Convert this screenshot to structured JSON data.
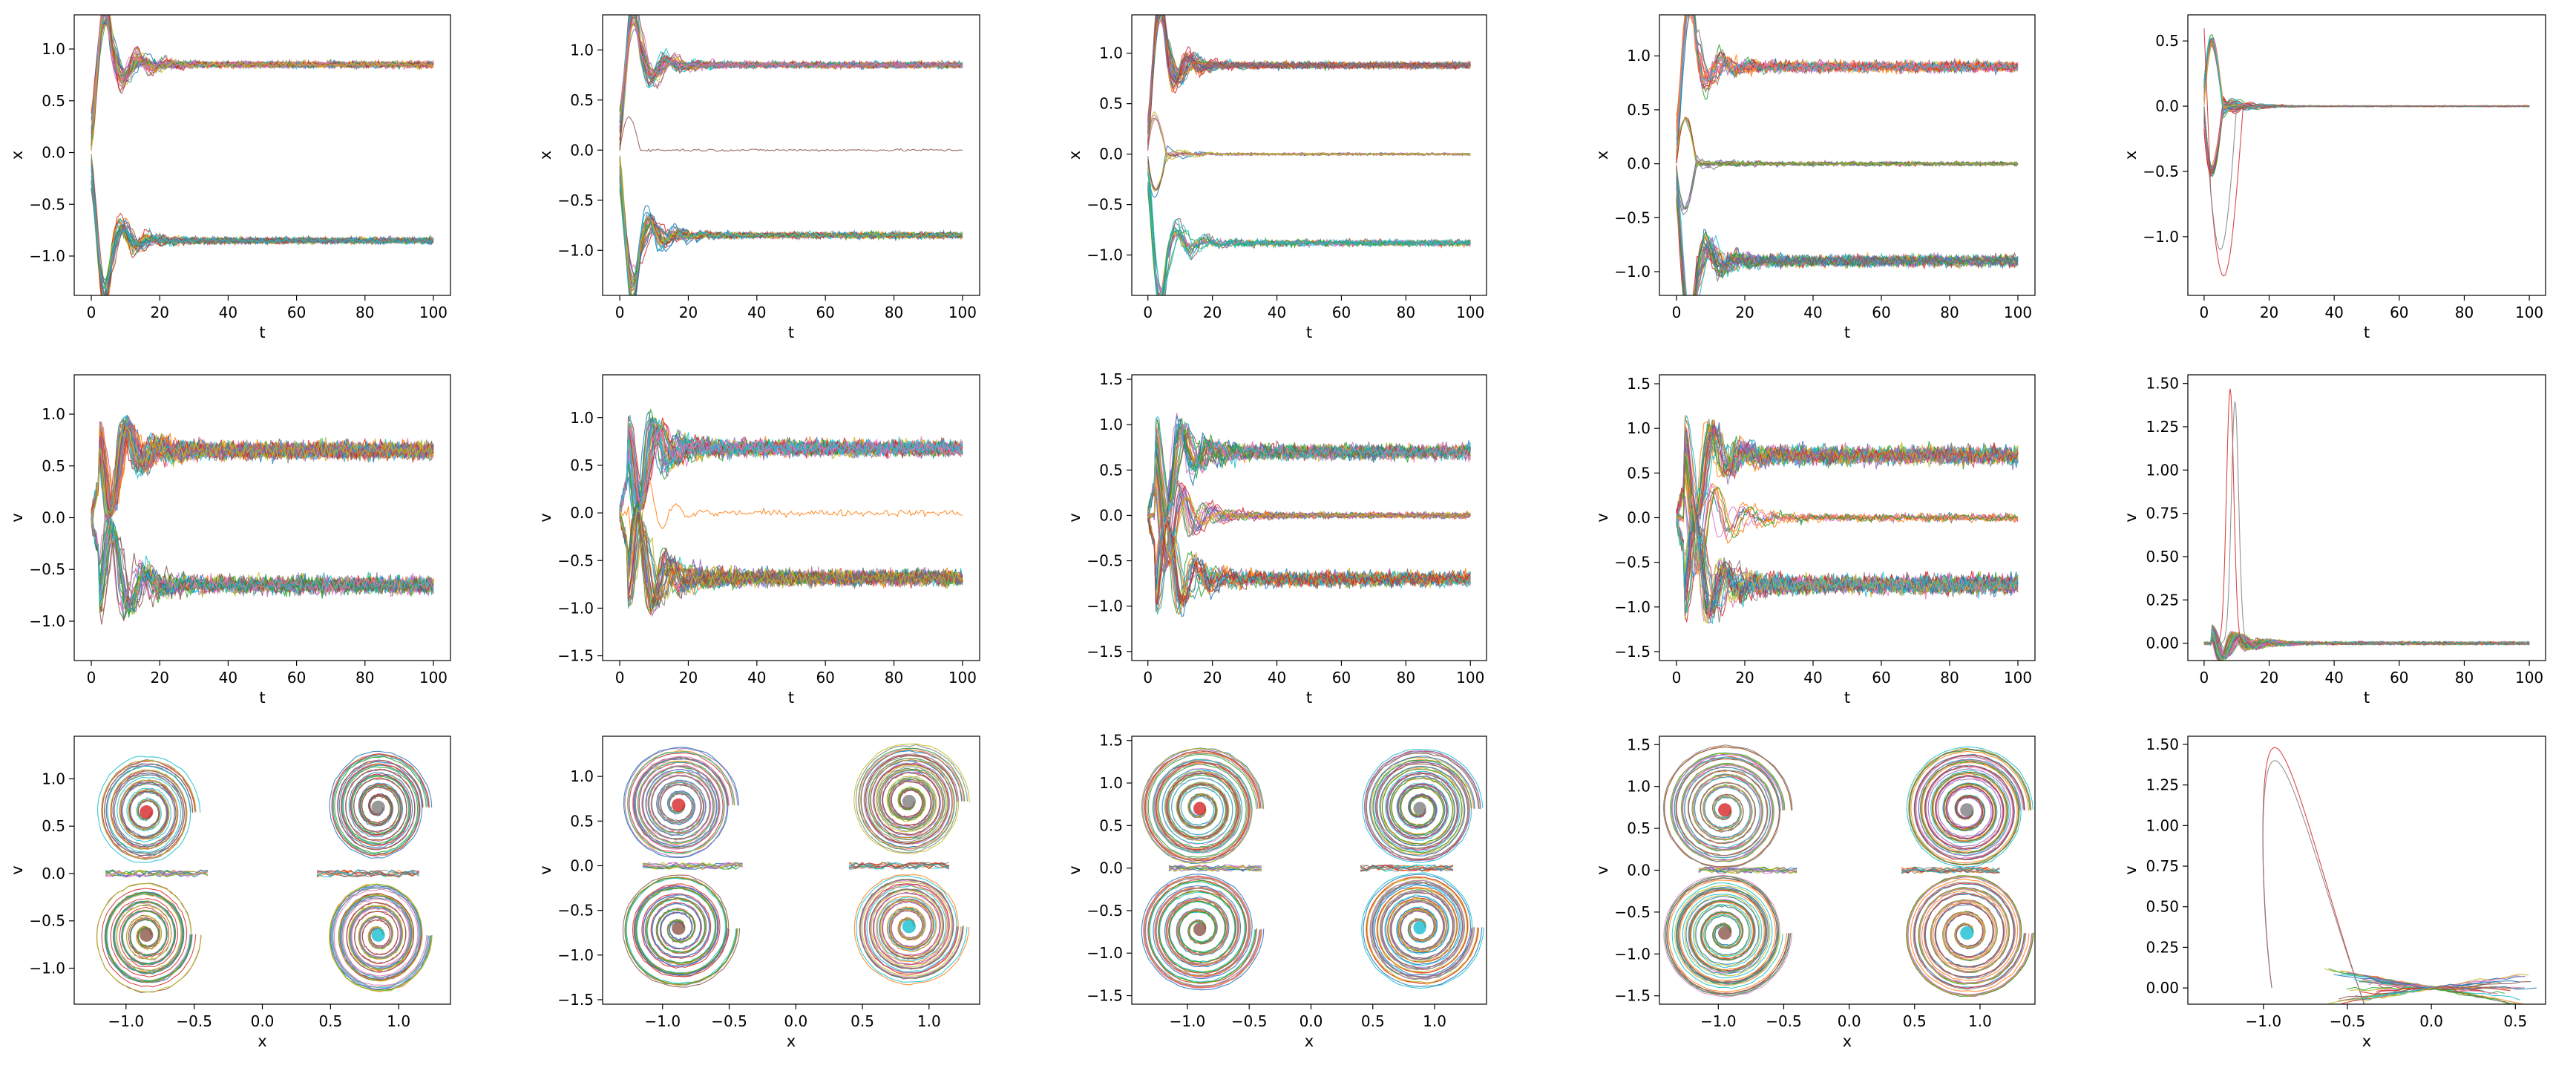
{
  "figure": {
    "description_layout": "3 rows x 5 columns grid of matplotlib subplots",
    "colors": [
      "#1f77b4",
      "#ff7f0e",
      "#2ca02c",
      "#d62728",
      "#9467bd",
      "#8c564b",
      "#e377c2",
      "#7f7f7f",
      "#bcbd22",
      "#17becf"
    ]
  },
  "chart_data": [
    {
      "id": "p00",
      "type": "line",
      "xlabel": "t",
      "ylabel": "x",
      "xlim": [
        -5,
        105
      ],
      "ylim": [
        -1.38,
        1.33
      ],
      "xticks": [
        0,
        20,
        40,
        60,
        80,
        100
      ],
      "yticks": [
        -1.0,
        -0.5,
        0.0,
        0.5,
        1.0
      ],
      "xticklabels": [
        "0",
        "20",
        "40",
        "60",
        "80",
        "100"
      ],
      "yticklabels": [
        "−1.0",
        "−0.5",
        "0.0",
        "0.5",
        "1.0"
      ],
      "series_summary": {
        "kind": "time",
        "levels": [
          0.85,
          -0.85
        ],
        "level_weights": [
          1,
          1
        ],
        "amplitude": 0.35,
        "noise": 0.03,
        "n_lines": 60
      }
    },
    {
      "id": "p01",
      "type": "line",
      "xlabel": "t",
      "ylabel": "x",
      "xlim": [
        -5,
        105
      ],
      "ylim": [
        -1.45,
        1.35
      ],
      "xticks": [
        0,
        20,
        40,
        60,
        80,
        100
      ],
      "yticks": [
        -1.0,
        -0.5,
        0.0,
        0.5,
        1.0
      ],
      "xticklabels": [
        "0",
        "20",
        "40",
        "60",
        "80",
        "100"
      ],
      "yticklabels": [
        "−1.0",
        "−0.5",
        "0.0",
        "0.5",
        "1.0"
      ],
      "series_summary": {
        "kind": "time",
        "levels": [
          0.85,
          0.0,
          -0.85
        ],
        "level_weights": [
          1,
          0.03,
          1
        ],
        "amplitude": 0.4,
        "noise": 0.03,
        "n_lines": 60
      }
    },
    {
      "id": "p02",
      "type": "line",
      "xlabel": "t",
      "ylabel": "x",
      "xlim": [
        -5,
        105
      ],
      "ylim": [
        -1.4,
        1.38
      ],
      "xticks": [
        0,
        20,
        40,
        60,
        80,
        100
      ],
      "yticks": [
        -1.0,
        -0.5,
        0.0,
        0.5,
        1.0
      ],
      "xticklabels": [
        "0",
        "20",
        "40",
        "60",
        "80",
        "100"
      ],
      "yticklabels": [
        "−1.0",
        "−0.5",
        "0.0",
        "0.5",
        "1.0"
      ],
      "series_summary": {
        "kind": "time",
        "levels": [
          0.88,
          0.0,
          -0.88
        ],
        "level_weights": [
          1,
          0.5,
          1
        ],
        "amplitude": 0.45,
        "noise": 0.03,
        "n_lines": 60
      }
    },
    {
      "id": "p03",
      "type": "line",
      "xlabel": "t",
      "ylabel": "x",
      "xlim": [
        -5,
        105
      ],
      "ylim": [
        -1.22,
        1.38
      ],
      "xticks": [
        0,
        20,
        40,
        60,
        80,
        100
      ],
      "yticks": [
        -1.0,
        -0.5,
        0.0,
        0.5,
        1.0
      ],
      "xticklabels": [
        "0",
        "20",
        "40",
        "60",
        "80",
        "100"
      ],
      "yticklabels": [
        "−1.0",
        "−0.5",
        "0.0",
        "0.5",
        "1.0"
      ],
      "series_summary": {
        "kind": "time",
        "levels": [
          0.9,
          0.0,
          -0.9
        ],
        "level_weights": [
          1,
          0.6,
          1
        ],
        "amplitude": 0.5,
        "noise": 0.05,
        "n_lines": 60
      }
    },
    {
      "id": "p04",
      "type": "line",
      "xlabel": "t",
      "ylabel": "x",
      "xlim": [
        -5,
        105
      ],
      "ylim": [
        -1.45,
        0.7
      ],
      "xticks": [
        0,
        20,
        40,
        60,
        80,
        100
      ],
      "yticks": [
        -1.0,
        -0.5,
        0.0,
        0.5
      ],
      "xticklabels": [
        "0",
        "20",
        "40",
        "60",
        "80",
        "100"
      ],
      "yticklabels": [
        "−1.0",
        "−0.5",
        "0.0",
        "0.5"
      ],
      "series_summary": {
        "kind": "time",
        "levels": [
          0.0
        ],
        "level_weights": [
          1
        ],
        "amplitude": 0.6,
        "noise": 0.01,
        "n_lines": 50,
        "outlier_min": -1.3
      }
    },
    {
      "id": "p10",
      "type": "line",
      "xlabel": "t",
      "ylabel": "v",
      "xlim": [
        -5,
        105
      ],
      "ylim": [
        -1.38,
        1.38
      ],
      "xticks": [
        0,
        20,
        40,
        60,
        80,
        100
      ],
      "yticks": [
        -1.0,
        -0.5,
        0.0,
        0.5,
        1.0
      ],
      "xticklabels": [
        "0",
        "20",
        "40",
        "60",
        "80",
        "100"
      ],
      "yticklabels": [
        "−1.0",
        "−0.5",
        "0.0",
        "0.5",
        "1.0"
      ],
      "series_summary": {
        "kind": "time",
        "levels": [
          0.65,
          -0.65
        ],
        "level_weights": [
          1,
          1
        ],
        "amplitude": 0.55,
        "noise": 0.08,
        "n_lines": 60
      }
    },
    {
      "id": "p11",
      "type": "line",
      "xlabel": "t",
      "ylabel": "v",
      "xlim": [
        -5,
        105
      ],
      "ylim": [
        -1.55,
        1.45
      ],
      "xticks": [
        0,
        20,
        40,
        60,
        80,
        100
      ],
      "yticks": [
        -1.5,
        -1.0,
        -0.5,
        0.0,
        0.5,
        1.0
      ],
      "xticklabels": [
        "0",
        "20",
        "40",
        "60",
        "80",
        "100"
      ],
      "yticklabels": [
        "−1.5",
        "−1.0",
        "−0.5",
        "0.0",
        "0.5",
        "1.0"
      ],
      "series_summary": {
        "kind": "time",
        "levels": [
          0.68,
          0.0,
          -0.68
        ],
        "level_weights": [
          1,
          0.03,
          1
        ],
        "amplitude": 0.6,
        "noise": 0.08,
        "n_lines": 60
      }
    },
    {
      "id": "p12",
      "type": "line",
      "xlabel": "t",
      "ylabel": "v",
      "xlim": [
        -5,
        105
      ],
      "ylim": [
        -1.6,
        1.55
      ],
      "xticks": [
        0,
        20,
        40,
        60,
        80,
        100
      ],
      "yticks": [
        -1.5,
        -1.0,
        -0.5,
        0.0,
        0.5,
        1.0,
        1.5
      ],
      "xticklabels": [
        "0",
        "20",
        "40",
        "60",
        "80",
        "100"
      ],
      "yticklabels": [
        "−1.5",
        "−1.0",
        "−0.5",
        "0.0",
        "0.5",
        "1.0",
        "1.5"
      ],
      "series_summary": {
        "kind": "time",
        "levels": [
          0.7,
          0.0,
          -0.7
        ],
        "level_weights": [
          1,
          0.5,
          1
        ],
        "amplitude": 0.65,
        "noise": 0.08,
        "n_lines": 60
      }
    },
    {
      "id": "p13",
      "type": "line",
      "xlabel": "t",
      "ylabel": "v",
      "xlim": [
        -5,
        105
      ],
      "ylim": [
        -1.6,
        1.6
      ],
      "xticks": [
        0,
        20,
        40,
        60,
        80,
        100
      ],
      "yticks": [
        -1.5,
        -1.0,
        -0.5,
        0.0,
        0.5,
        1.0,
        1.5
      ],
      "xticklabels": [
        "0",
        "20",
        "40",
        "60",
        "80",
        "100"
      ],
      "yticklabels": [
        "−1.5",
        "−1.0",
        "−0.5",
        "0.0",
        "0.5",
        "1.0",
        "1.5"
      ],
      "series_summary": {
        "kind": "time",
        "levels": [
          0.7,
          0.0,
          -0.75
        ],
        "level_weights": [
          1,
          0.6,
          1
        ],
        "amplitude": 0.7,
        "noise": 0.1,
        "n_lines": 60
      }
    },
    {
      "id": "p14",
      "type": "line",
      "xlabel": "t",
      "ylabel": "v",
      "xlim": [
        -5,
        105
      ],
      "ylim": [
        -0.1,
        1.55
      ],
      "xticks": [
        0,
        20,
        40,
        60,
        80,
        100
      ],
      "yticks": [
        0.0,
        0.25,
        0.5,
        0.75,
        1.0,
        1.25,
        1.5
      ],
      "xticklabels": [
        "0",
        "20",
        "40",
        "60",
        "80",
        "100"
      ],
      "yticklabels": [
        "0.00",
        "0.25",
        "0.50",
        "0.75",
        "1.00",
        "1.25",
        "1.50"
      ],
      "series_summary": {
        "kind": "time",
        "levels": [
          0.0
        ],
        "level_weights": [
          1
        ],
        "amplitude": 0.1,
        "noise": 0.02,
        "n_lines": 50,
        "spike_max": 1.47,
        "spike_t": 8
      }
    },
    {
      "id": "p20",
      "type": "line",
      "xlabel": "x",
      "ylabel": "v",
      "xlim": [
        -1.38,
        1.38
      ],
      "ylim": [
        -1.38,
        1.45
      ],
      "xticks": [
        -1.0,
        -0.5,
        0.0,
        0.5,
        1.0
      ],
      "yticks": [
        -1.0,
        -0.5,
        0.0,
        0.5,
        1.0
      ],
      "xticklabels": [
        "−1.0",
        "−0.5",
        "0.0",
        "0.5",
        "1.0"
      ],
      "yticklabels": [
        "−1.0",
        "−0.5",
        "0.0",
        "0.5",
        "1.0"
      ],
      "series_summary": {
        "kind": "phase",
        "centers": [
          [
            -0.85,
            0.65
          ],
          [
            -0.85,
            -0.65
          ],
          [
            0.85,
            0.7
          ],
          [
            0.85,
            -0.65
          ]
        ],
        "orbit_rx": 0.35,
        "orbit_ry": 0.55
      }
    },
    {
      "id": "p21",
      "type": "line",
      "xlabel": "x",
      "ylabel": "v",
      "xlim": [
        -1.45,
        1.38
      ],
      "ylim": [
        -1.55,
        1.45
      ],
      "xticks": [
        -1.0,
        -0.5,
        0.0,
        0.5,
        1.0
      ],
      "yticks": [
        -1.5,
        -1.0,
        -0.5,
        0.0,
        0.5,
        1.0
      ],
      "xticklabels": [
        "−1.0",
        "−0.5",
        "0.0",
        "0.5",
        "1.0"
      ],
      "yticklabels": [
        "−1.5",
        "−1.0",
        "−0.5",
        "0.0",
        "0.5",
        "1.0"
      ],
      "series_summary": {
        "kind": "phase",
        "centers": [
          [
            -0.88,
            0.68
          ],
          [
            -0.88,
            -0.7
          ],
          [
            0.85,
            0.72
          ],
          [
            0.85,
            -0.68
          ]
        ],
        "orbit_rx": 0.4,
        "orbit_ry": 0.6
      }
    },
    {
      "id": "p22",
      "type": "line",
      "xlabel": "x",
      "ylabel": "v",
      "xlim": [
        -1.45,
        1.42
      ],
      "ylim": [
        -1.6,
        1.55
      ],
      "xticks": [
        -1.0,
        -0.5,
        0.0,
        0.5,
        1.0
      ],
      "yticks": [
        -1.5,
        -1.0,
        -0.5,
        0.0,
        0.5,
        1.0,
        1.5
      ],
      "xticklabels": [
        "−1.0",
        "−0.5",
        "0.0",
        "0.5",
        "1.0"
      ],
      "yticklabels": [
        "−1.5",
        "−1.0",
        "−0.5",
        "0.0",
        "0.5",
        "1.0",
        "1.5"
      ],
      "series_summary": {
        "kind": "phase",
        "centers": [
          [
            -0.9,
            0.7
          ],
          [
            -0.9,
            -0.72
          ],
          [
            0.88,
            0.7
          ],
          [
            0.88,
            -0.7
          ]
        ],
        "orbit_rx": 0.45,
        "orbit_ry": 0.65
      }
    },
    {
      "id": "p23",
      "type": "line",
      "xlabel": "x",
      "ylabel": "v",
      "xlim": [
        -1.45,
        1.42
      ],
      "ylim": [
        -1.6,
        1.6
      ],
      "xticks": [
        -1.0,
        -0.5,
        0.0,
        0.5,
        1.0
      ],
      "yticks": [
        -1.5,
        -1.0,
        -0.5,
        0.0,
        0.5,
        1.0,
        1.5
      ],
      "xticklabels": [
        "−1.0",
        "−0.5",
        "0.0",
        "0.5",
        "1.0"
      ],
      "yticklabels": [
        "−1.5",
        "−1.0",
        "−0.5",
        "0.0",
        "0.5",
        "1.0",
        "1.5"
      ],
      "series_summary": {
        "kind": "phase",
        "centers": [
          [
            -0.95,
            0.72
          ],
          [
            -0.95,
            -0.75
          ],
          [
            0.9,
            0.72
          ],
          [
            0.9,
            -0.75
          ]
        ],
        "orbit_rx": 0.45,
        "orbit_ry": 0.7
      }
    },
    {
      "id": "p24",
      "type": "line",
      "xlabel": "x",
      "ylabel": "v",
      "xlim": [
        -1.45,
        0.68
      ],
      "ylim": [
        -0.1,
        1.55
      ],
      "xticks": [
        -1.0,
        -0.5,
        0.0,
        0.5
      ],
      "yticks": [
        0.0,
        0.25,
        0.5,
        0.75,
        1.0,
        1.25,
        1.5
      ],
      "xticklabels": [
        "−1.0",
        "−0.5",
        "0.0",
        "0.5"
      ],
      "yticklabels": [
        "0.00",
        "0.25",
        "0.50",
        "0.75",
        "1.00",
        "1.25",
        "1.50"
      ],
      "series_summary": {
        "kind": "phase_collapse",
        "loop_peak": [
          -0.95,
          1.48
        ]
      }
    }
  ]
}
